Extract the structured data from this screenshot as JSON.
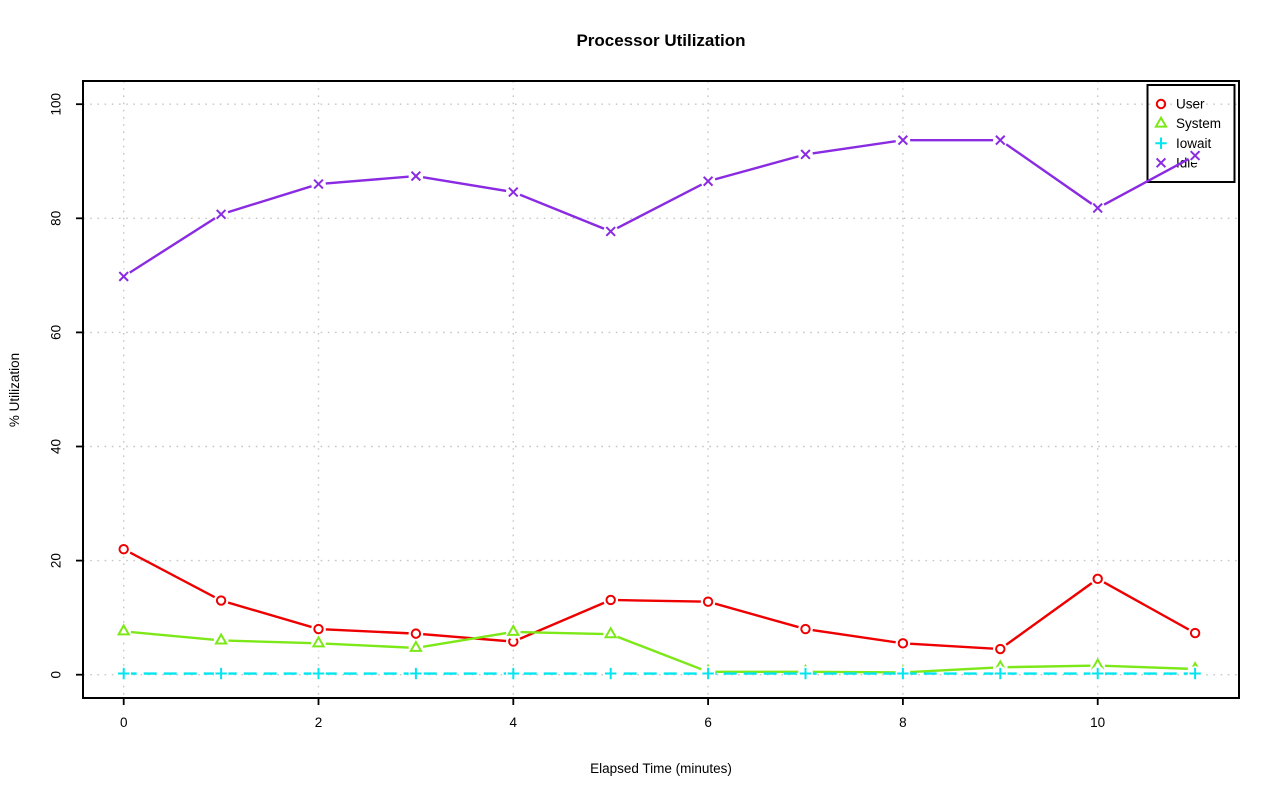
{
  "chart_data": {
    "type": "line",
    "title": "Processor Utilization",
    "xlabel": "Elapsed Time (minutes)",
    "ylabel": "% Utilization",
    "x": [
      0,
      1,
      2,
      3,
      4,
      5,
      6,
      7,
      8,
      9,
      10,
      11
    ],
    "x_ticks": [
      0,
      2,
      4,
      6,
      8,
      10
    ],
    "y_ticks": [
      0,
      20,
      40,
      60,
      80,
      100
    ],
    "xlim": [
      -0.44,
      11.44
    ],
    "ylim": [
      -4.2,
      104.2
    ],
    "grid": "dotted",
    "grid_color": "#c6c6c6",
    "legend_position": "top-right",
    "legend_transparent": true,
    "series": [
      {
        "name": "User",
        "color": "#ee0000",
        "marker": "circle",
        "line_style": "solid",
        "values": [
          22,
          13,
          8,
          7.2,
          5.8,
          13.1,
          12.8,
          8,
          5.5,
          4.5,
          16.8,
          7.3
        ]
      },
      {
        "name": "System",
        "color": "#7ce817",
        "marker": "triangle",
        "line_style": "solid",
        "values": [
          7.6,
          6,
          5.5,
          4.7,
          7.5,
          7.1,
          0.5,
          0.5,
          0.4,
          1.3,
          1.6,
          1
        ]
      },
      {
        "name": "Iowait",
        "color": "#00e5ee",
        "marker": "plus",
        "line_style": "dashed",
        "values": [
          0.2,
          0.2,
          0.2,
          0.2,
          0.2,
          0.2,
          0.2,
          0.2,
          0.2,
          0.2,
          0.2,
          0.2
        ]
      },
      {
        "name": "Idle",
        "color": "#8a2be2",
        "marker": "x",
        "line_style": "solid",
        "values": [
          69.8,
          80.7,
          86,
          87.4,
          84.6,
          77.7,
          86.5,
          91.2,
          93.7,
          93.7,
          81.8,
          91
        ]
      }
    ]
  }
}
